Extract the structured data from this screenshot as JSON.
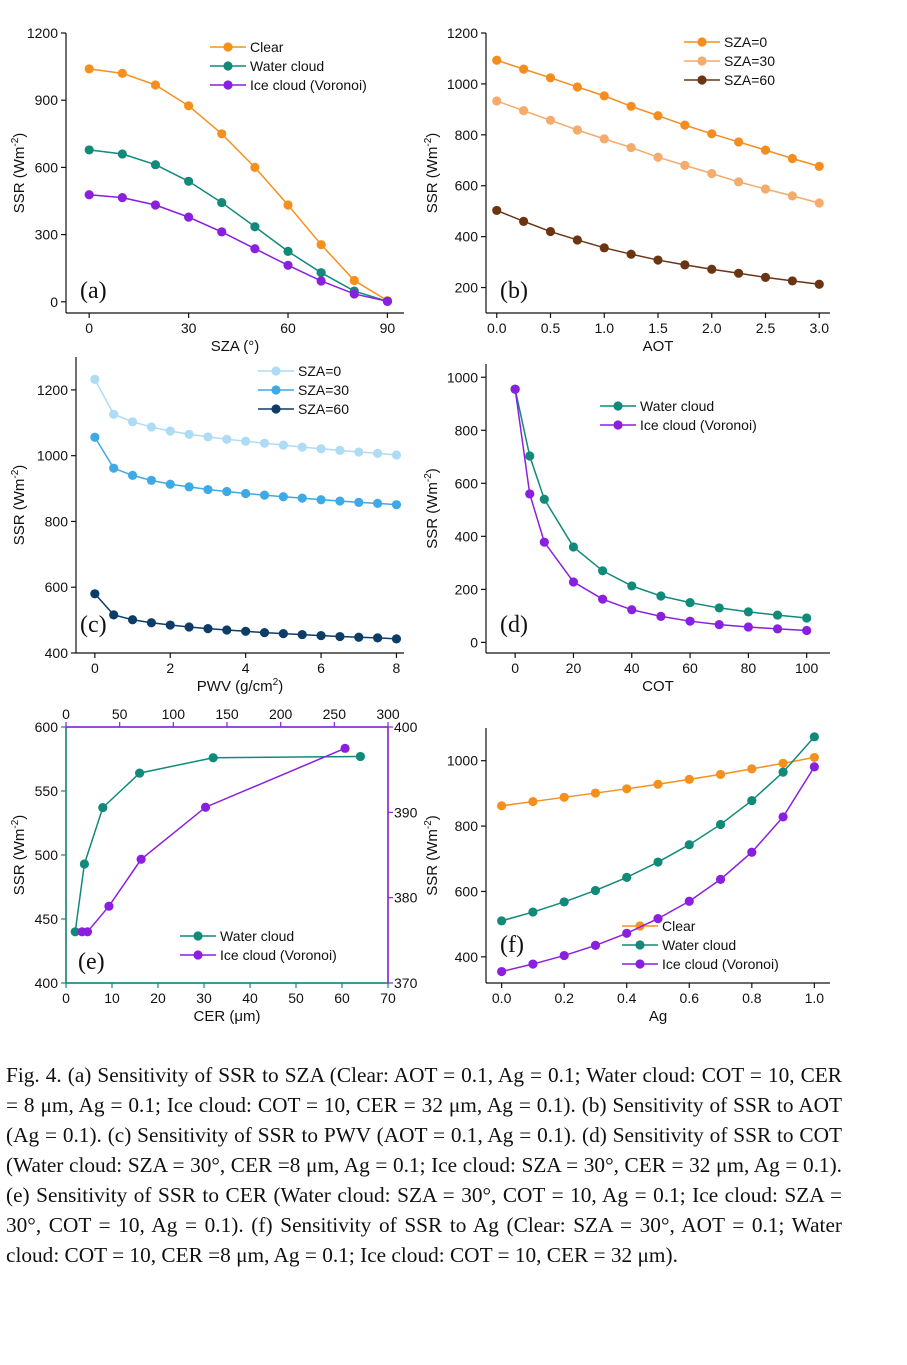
{
  "colors": {
    "clear": "#f5901e",
    "water": "#118a7a",
    "ice": "#8b1fe0",
    "sza0_b": "#f58d1e",
    "sza30_b": "#f4ab6c",
    "sza60_b": "#6b3412",
    "sza0_c": "#aedcf4",
    "sza30_c": "#3fa9e6",
    "sza60_c": "#0d3c66",
    "axis": "#111111"
  },
  "caption": "Fig. 4.   (a) Sensitivity of SSR to SZA (Clear: AOT = 0.1, Ag = 0.1; Water cloud: COT = 10, CER = 8 μm, Ag = 0.1; Ice cloud: COT = 10, CER = 32 μm, Ag = 0.1). (b) Sensitivity of SSR to AOT (Ag = 0.1). (c) Sensitivity of SSR to PWV (AOT = 0.1, Ag = 0.1). (d) Sensitivity of SSR to COT (Water cloud: SZA = 30°, CER =8 μm, Ag = 0.1; Ice cloud: SZA = 30°, CER = 32 μm, Ag = 0.1). (e) Sensitivity of SSR to CER (Water cloud: SZA = 30°, COT = 10, Ag = 0.1; Ice cloud: SZA = 30°, COT = 10, Ag = 0.1). (f) Sensitivity of SSR to Ag (Clear: SZA = 30°, AOT = 0.1; Water cloud: COT = 10, CER =8 μm, Ag = 0.1; Ice cloud: COT = 10, CER = 32 μm).",
  "chart_data": [
    {
      "panel": "(a)",
      "type": "line",
      "xlabel": "SZA (°)",
      "ylabel": "SSR (Wm⁻²)",
      "xlim": [
        -7,
        95
      ],
      "ylim": [
        -50,
        1200
      ],
      "xticks": [
        0,
        30,
        60,
        90
      ],
      "yticks": [
        0,
        300,
        600,
        900,
        1200
      ],
      "legend": "top-right",
      "series": [
        {
          "name": "Clear",
          "color": "clear",
          "x": [
            0,
            10,
            20,
            30,
            40,
            50,
            60,
            70,
            80,
            90
          ],
          "y": [
            1040,
            1020,
            968,
            875,
            750,
            600,
            432,
            255,
            95,
            5
          ]
        },
        {
          "name": "Water cloud",
          "color": "water",
          "x": [
            0,
            10,
            20,
            30,
            40,
            50,
            60,
            70,
            80,
            90
          ],
          "y": [
            678,
            660,
            612,
            538,
            443,
            335,
            225,
            130,
            48,
            2
          ]
        },
        {
          "name": "Ice cloud (Voronoi)",
          "color": "ice",
          "x": [
            0,
            10,
            20,
            30,
            40,
            50,
            60,
            70,
            80,
            90
          ],
          "y": [
            478,
            465,
            432,
            378,
            312,
            237,
            163,
            93,
            35,
            2
          ]
        }
      ]
    },
    {
      "panel": "(b)",
      "type": "line",
      "xlabel": "AOT",
      "ylabel": "SSR (Wm⁻²)",
      "xlim": [
        -0.1,
        3.1
      ],
      "ylim": [
        100,
        1200
      ],
      "xticks": [
        0.0,
        0.5,
        1.0,
        1.5,
        2.0,
        2.5,
        3.0
      ],
      "xtick_labels": [
        "0.0",
        "0.5",
        "1.0",
        "1.5",
        "2.0",
        "2.5",
        "3.0"
      ],
      "yticks": [
        200,
        400,
        600,
        800,
        1000,
        1200
      ],
      "legend": "top-right",
      "series": [
        {
          "name": "SZA=0",
          "color": "sza0_b",
          "x": [
            0,
            0.25,
            0.5,
            0.75,
            1.0,
            1.25,
            1.5,
            1.75,
            2.0,
            2.25,
            2.5,
            2.75,
            3.0
          ],
          "y": [
            1093,
            1058,
            1024,
            988,
            953,
            912,
            875,
            838,
            804,
            772,
            740,
            707,
            676
          ]
        },
        {
          "name": "SZA=30",
          "color": "sza30_b",
          "x": [
            0,
            0.25,
            0.5,
            0.75,
            1.0,
            1.25,
            1.5,
            1.75,
            2.0,
            2.25,
            2.5,
            2.75,
            3.0
          ],
          "y": [
            933,
            895,
            857,
            819,
            784,
            750,
            712,
            680,
            648,
            615,
            587,
            560,
            532
          ]
        },
        {
          "name": "SZA=60",
          "color": "sza60_b",
          "x": [
            0,
            0.25,
            0.5,
            0.75,
            1.0,
            1.25,
            1.5,
            1.75,
            2.0,
            2.25,
            2.5,
            2.75,
            3.0
          ],
          "y": [
            503,
            460,
            420,
            387,
            356,
            331,
            308,
            289,
            272,
            256,
            240,
            226,
            213
          ]
        }
      ]
    },
    {
      "panel": "(c)",
      "type": "line",
      "xlabel": "PWV (g/cm²)",
      "ylabel": "SSR (Wm⁻²)",
      "xlim": [
        -0.5,
        8.2
      ],
      "ylim": [
        400,
        1300
      ],
      "xticks": [
        0,
        2,
        4,
        6,
        8
      ],
      "yticks": [
        400,
        600,
        800,
        1000,
        1200
      ],
      "legend": "top-right",
      "series": [
        {
          "name": "SZA=0",
          "color": "sza0_c",
          "x": [
            0,
            0.5,
            1,
            1.5,
            2,
            2.5,
            3,
            3.5,
            4,
            4.5,
            5,
            5.5,
            6,
            6.5,
            7,
            7.5,
            8
          ],
          "y": [
            1232,
            1126,
            1103,
            1087,
            1075,
            1065,
            1057,
            1050,
            1044,
            1038,
            1032,
            1026,
            1021,
            1016,
            1011,
            1007,
            1002
          ]
        },
        {
          "name": "SZA=30",
          "color": "sza30_c",
          "x": [
            0,
            0.5,
            1,
            1.5,
            2,
            2.5,
            3,
            3.5,
            4,
            4.5,
            5,
            5.5,
            6,
            6.5,
            7,
            7.5,
            8
          ],
          "y": [
            1056,
            962,
            940,
            925,
            913,
            905,
            897,
            891,
            885,
            880,
            875,
            871,
            866,
            862,
            858,
            855,
            851
          ]
        },
        {
          "name": "SZA=60",
          "color": "sza60_c",
          "x": [
            0,
            0.5,
            1,
            1.5,
            2,
            2.5,
            3,
            3.5,
            4,
            4.5,
            5,
            5.5,
            6,
            6.5,
            7,
            7.5,
            8
          ],
          "y": [
            580,
            516,
            501,
            492,
            485,
            479,
            474,
            470,
            466,
            462,
            459,
            456,
            453,
            450,
            448,
            446,
            443
          ]
        }
      ]
    },
    {
      "panel": "(d)",
      "type": "line",
      "xlabel": "COT",
      "ylabel": "SSR (Wm⁻²)",
      "xlim": [
        -10,
        108
      ],
      "ylim": [
        -40,
        1050
      ],
      "xticks": [
        0,
        20,
        40,
        60,
        80,
        100
      ],
      "yticks": [
        0,
        200,
        400,
        600,
        800,
        1000
      ],
      "legend": "top-right",
      "series": [
        {
          "name": "Water cloud",
          "color": "water",
          "x": [
            0,
            5,
            10,
            20,
            30,
            40,
            50,
            60,
            70,
            80,
            90,
            100
          ],
          "y": [
            955,
            703,
            540,
            360,
            270,
            213,
            175,
            150,
            130,
            115,
            103,
            92
          ]
        },
        {
          "name": "Ice cloud (Voronoi)",
          "color": "ice",
          "x": [
            0,
            5,
            10,
            20,
            30,
            40,
            50,
            60,
            70,
            80,
            90,
            100
          ],
          "y": [
            955,
            560,
            378,
            228,
            163,
            123,
            98,
            80,
            67,
            58,
            51,
            45
          ]
        }
      ]
    },
    {
      "panel": "(e)",
      "type": "line",
      "xlabel": "CER (μm)",
      "ylabel": "SSR (Wm⁻²)",
      "xlim": [
        0,
        70
      ],
      "ylim": [
        400,
        600
      ],
      "xticks": [
        0,
        10,
        20,
        30,
        40,
        50,
        60,
        70
      ],
      "yticks": [
        400,
        450,
        500,
        550,
        600
      ],
      "x2lim": [
        0,
        300
      ],
      "x2ticks": [
        0,
        50,
        100,
        150,
        200,
        250,
        300
      ],
      "y2lim": [
        370,
        400
      ],
      "y2ticks": [
        370,
        380,
        390,
        400
      ],
      "legend": "bottom-right",
      "series": [
        {
          "name": "Water cloud",
          "color": "water",
          "axes": "primary",
          "x": [
            2,
            4,
            8,
            16,
            32,
            64
          ],
          "y": [
            440,
            493,
            537,
            564,
            576,
            577
          ]
        },
        {
          "name": "Ice cloud (Voronoi)",
          "color": "ice",
          "axes": "secondary",
          "x": [
            15,
            20,
            40,
            70,
            130,
            260
          ],
          "y": [
            376,
            376,
            379,
            384.5,
            390.6,
            397.5
          ]
        }
      ]
    },
    {
      "panel": "(f)",
      "type": "line",
      "xlabel": "Ag",
      "ylabel": "SSR (Wm⁻²)",
      "xlim": [
        -0.05,
        1.05
      ],
      "ylim": [
        320,
        1100
      ],
      "xticks": [
        0.0,
        0.2,
        0.4,
        0.6,
        0.8,
        1.0
      ],
      "xtick_labels": [
        "0.0",
        "0.2",
        "0.4",
        "0.6",
        "0.8",
        "1.0"
      ],
      "yticks": [
        400,
        600,
        800,
        1000
      ],
      "legend": "bottom-right",
      "series": [
        {
          "name": "Clear",
          "color": "clear",
          "x": [
            0,
            0.1,
            0.2,
            0.3,
            0.4,
            0.5,
            0.6,
            0.7,
            0.8,
            0.9,
            1.0
          ],
          "y": [
            862,
            875,
            888,
            901,
            914,
            928,
            943,
            958,
            975,
            992,
            1010
          ]
        },
        {
          "name": "Water cloud",
          "color": "water",
          "x": [
            0,
            0.1,
            0.2,
            0.3,
            0.4,
            0.5,
            0.6,
            0.7,
            0.8,
            0.9,
            1.0
          ],
          "y": [
            510,
            537,
            568,
            603,
            643,
            690,
            743,
            805,
            878,
            965,
            1073
          ]
        },
        {
          "name": "Ice cloud (Voronoi)",
          "color": "ice",
          "x": [
            0,
            0.1,
            0.2,
            0.3,
            0.4,
            0.5,
            0.6,
            0.7,
            0.8,
            0.9,
            1.0
          ],
          "y": [
            355,
            378,
            404,
            435,
            472,
            517,
            570,
            637,
            720,
            828,
            981
          ]
        }
      ]
    }
  ]
}
